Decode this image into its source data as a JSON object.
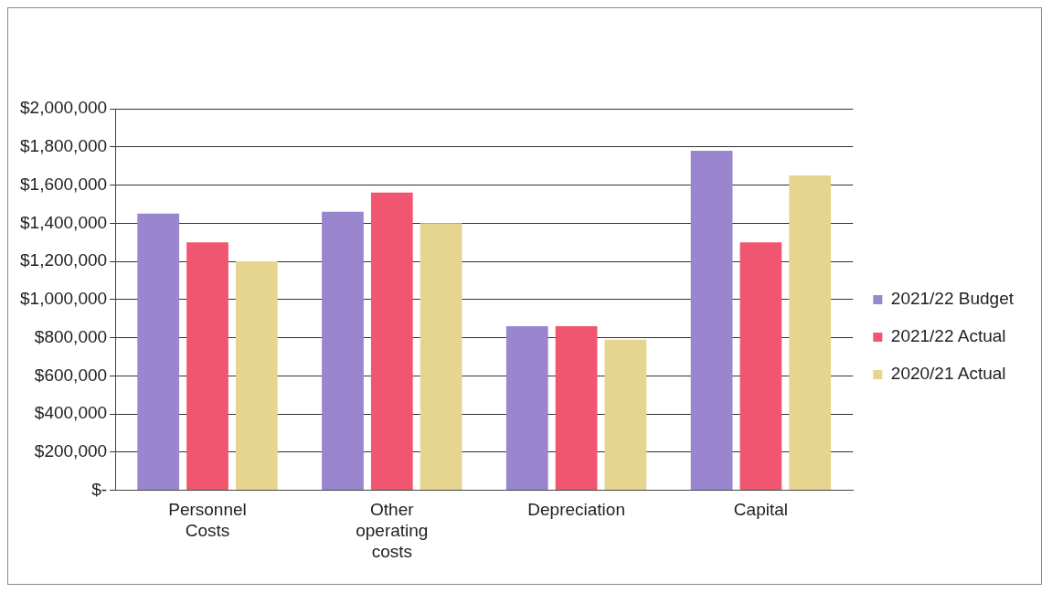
{
  "chart_data": {
    "type": "bar",
    "categories": [
      "Personnel Costs",
      "Other operating costs",
      "Depreciation",
      "Capital"
    ],
    "series": [
      {
        "name": "2021/22 Budget",
        "color": "#9a86cf",
        "values": [
          1450000,
          1460000,
          860000,
          1780000
        ]
      },
      {
        "name": "2021/22 Actual",
        "color": "#f0566f",
        "values": [
          1300000,
          1560000,
          860000,
          1300000
        ]
      },
      {
        "name": "2020/21 Actual",
        "color": "#e6d58e",
        "values": [
          1200000,
          1400000,
          790000,
          1650000
        ]
      }
    ],
    "ylim": [
      0,
      2000000
    ],
    "yticks": [
      {
        "value": 0,
        "label": "$-"
      },
      {
        "value": 200000,
        "label": "$200,000"
      },
      {
        "value": 400000,
        "label": "$400,000"
      },
      {
        "value": 600000,
        "label": "$600,000"
      },
      {
        "value": 800000,
        "label": "$800,000"
      },
      {
        "value": 1000000,
        "label": "$1,000,000"
      },
      {
        "value": 1200000,
        "label": "$1,200,000"
      },
      {
        "value": 1400000,
        "label": "$1,400,000"
      },
      {
        "value": 1600000,
        "label": "$1,600,000"
      },
      {
        "value": 1800000,
        "label": "$1,800,000"
      },
      {
        "value": 2000000,
        "label": "$2,000,000"
      }
    ],
    "grid": "y",
    "legend": "right"
  }
}
